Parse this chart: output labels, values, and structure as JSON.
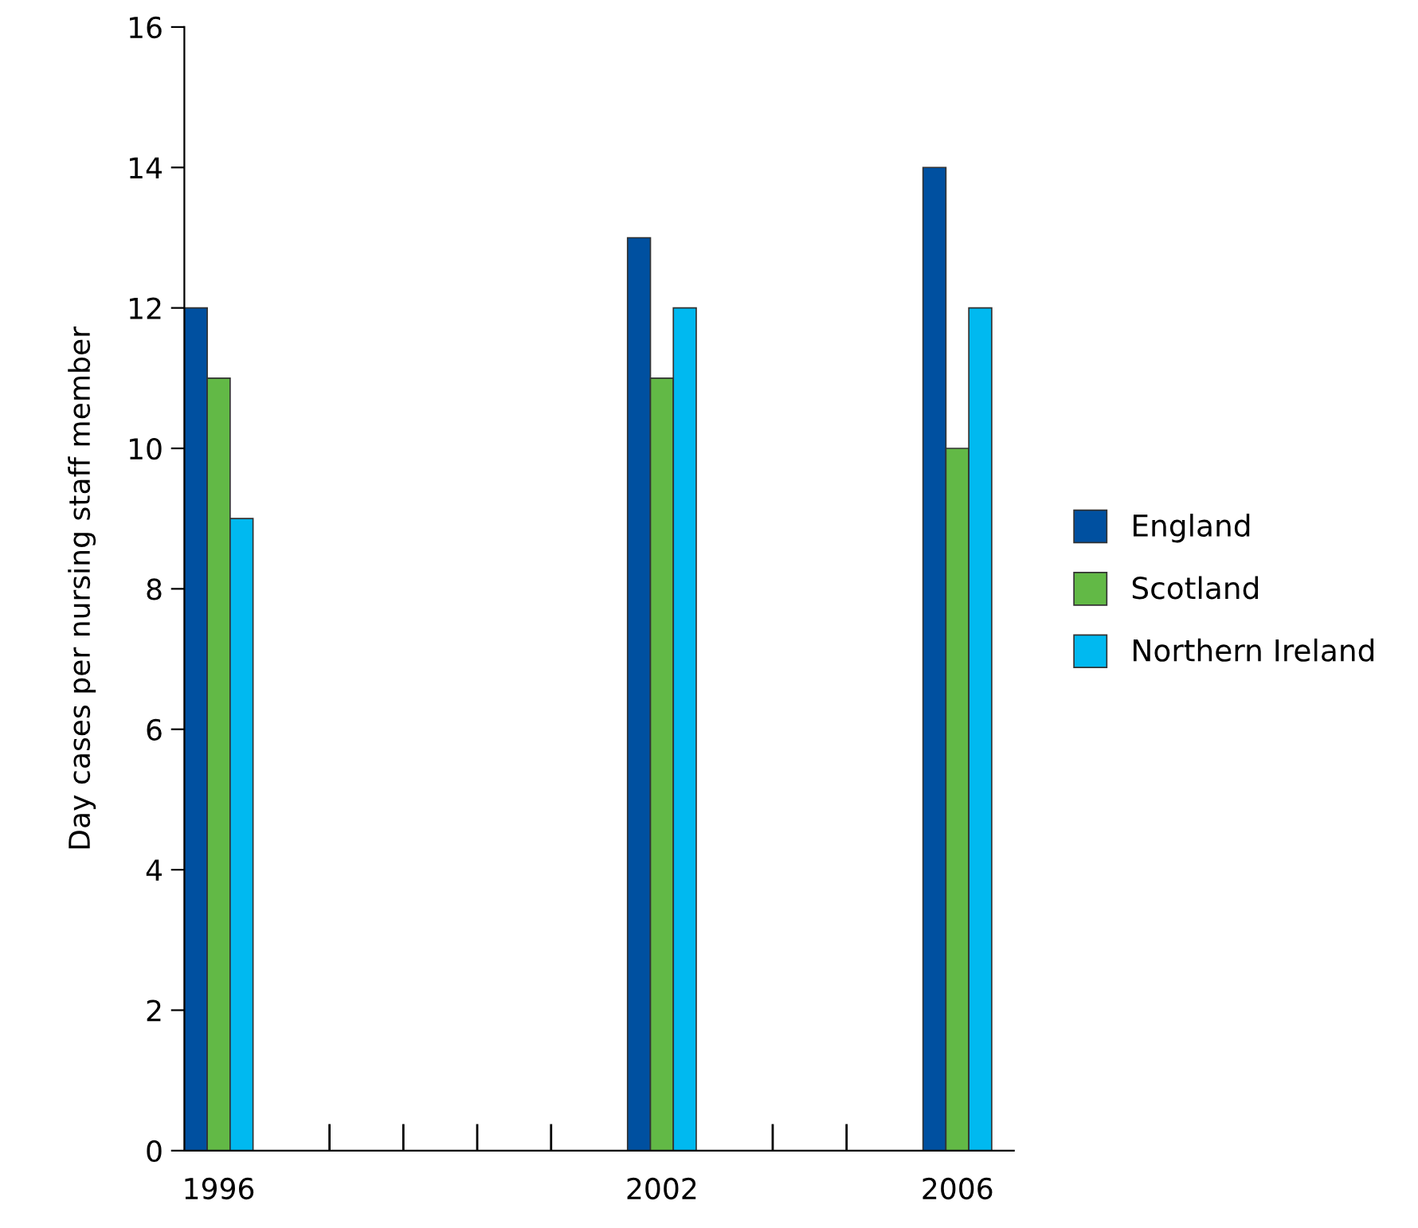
{
  "chart_data": {
    "type": "bar",
    "ylabel": "Day cases per nursing staff member",
    "categories": [
      "1996",
      null,
      null,
      null,
      null,
      null,
      "2002",
      null,
      null,
      null,
      "2006"
    ],
    "series": [
      {
        "name": "England",
        "color": "#0050a0",
        "values": [
          12,
          null,
          null,
          null,
          null,
          null,
          13,
          null,
          null,
          null,
          14
        ]
      },
      {
        "name": "Scotland",
        "color": "#62b946",
        "values": [
          11,
          null,
          null,
          null,
          null,
          null,
          11,
          null,
          null,
          null,
          10
        ]
      },
      {
        "name": "Northern Ireland",
        "color": "#00b9f0",
        "values": [
          9,
          null,
          null,
          null,
          null,
          null,
          12,
          null,
          null,
          null,
          12
        ]
      }
    ],
    "ylim": [
      0,
      16
    ],
    "yticks": [
      0,
      2,
      4,
      6,
      8,
      10,
      12,
      14,
      16
    ],
    "grid": false,
    "legend": "right"
  }
}
